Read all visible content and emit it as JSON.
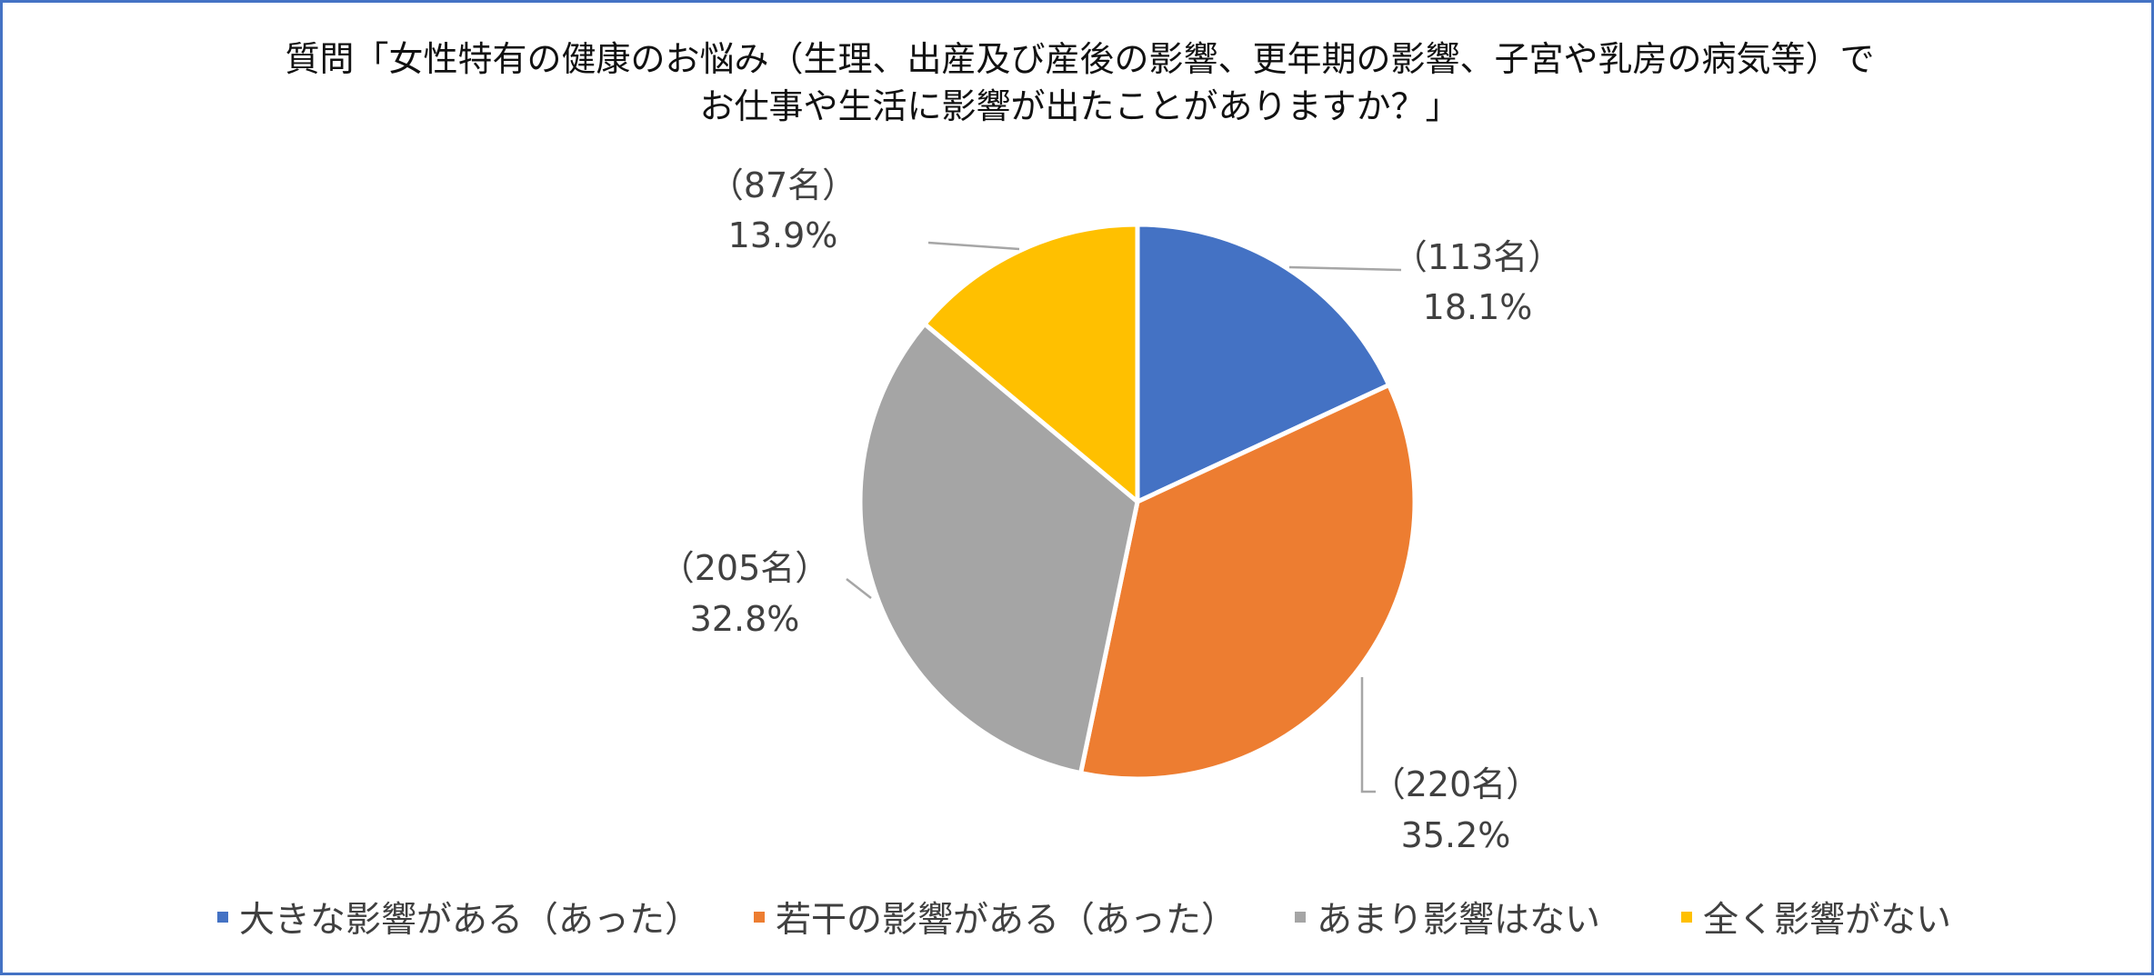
{
  "chart_data": {
    "type": "pie",
    "title_lines": [
      "質問「女性特有の健康のお悩み（生理、出産及び産後の影響、更年期の影響、子宮や乳房の病気等）で",
      "お仕事や生活に影響が出たことがありますか？」"
    ],
    "categories": [
      "大きな影響がある（あった）",
      "若干の影響がある（あった）",
      "あまり影響はない",
      "全く影響がない"
    ],
    "values": [
      113,
      220,
      205,
      87
    ],
    "count_labels": [
      "（113名）",
      "（220名）",
      "（205名）",
      "（87名）"
    ],
    "percent_labels": [
      "18.1%",
      "35.2%",
      "32.8%",
      "13.9%"
    ],
    "colors": [
      "#4472C4",
      "#ED7D31",
      "#A5A5A5",
      "#FFC000"
    ],
    "legend_position": "bottom",
    "start_angle": "12 o'clock, clockwise"
  }
}
